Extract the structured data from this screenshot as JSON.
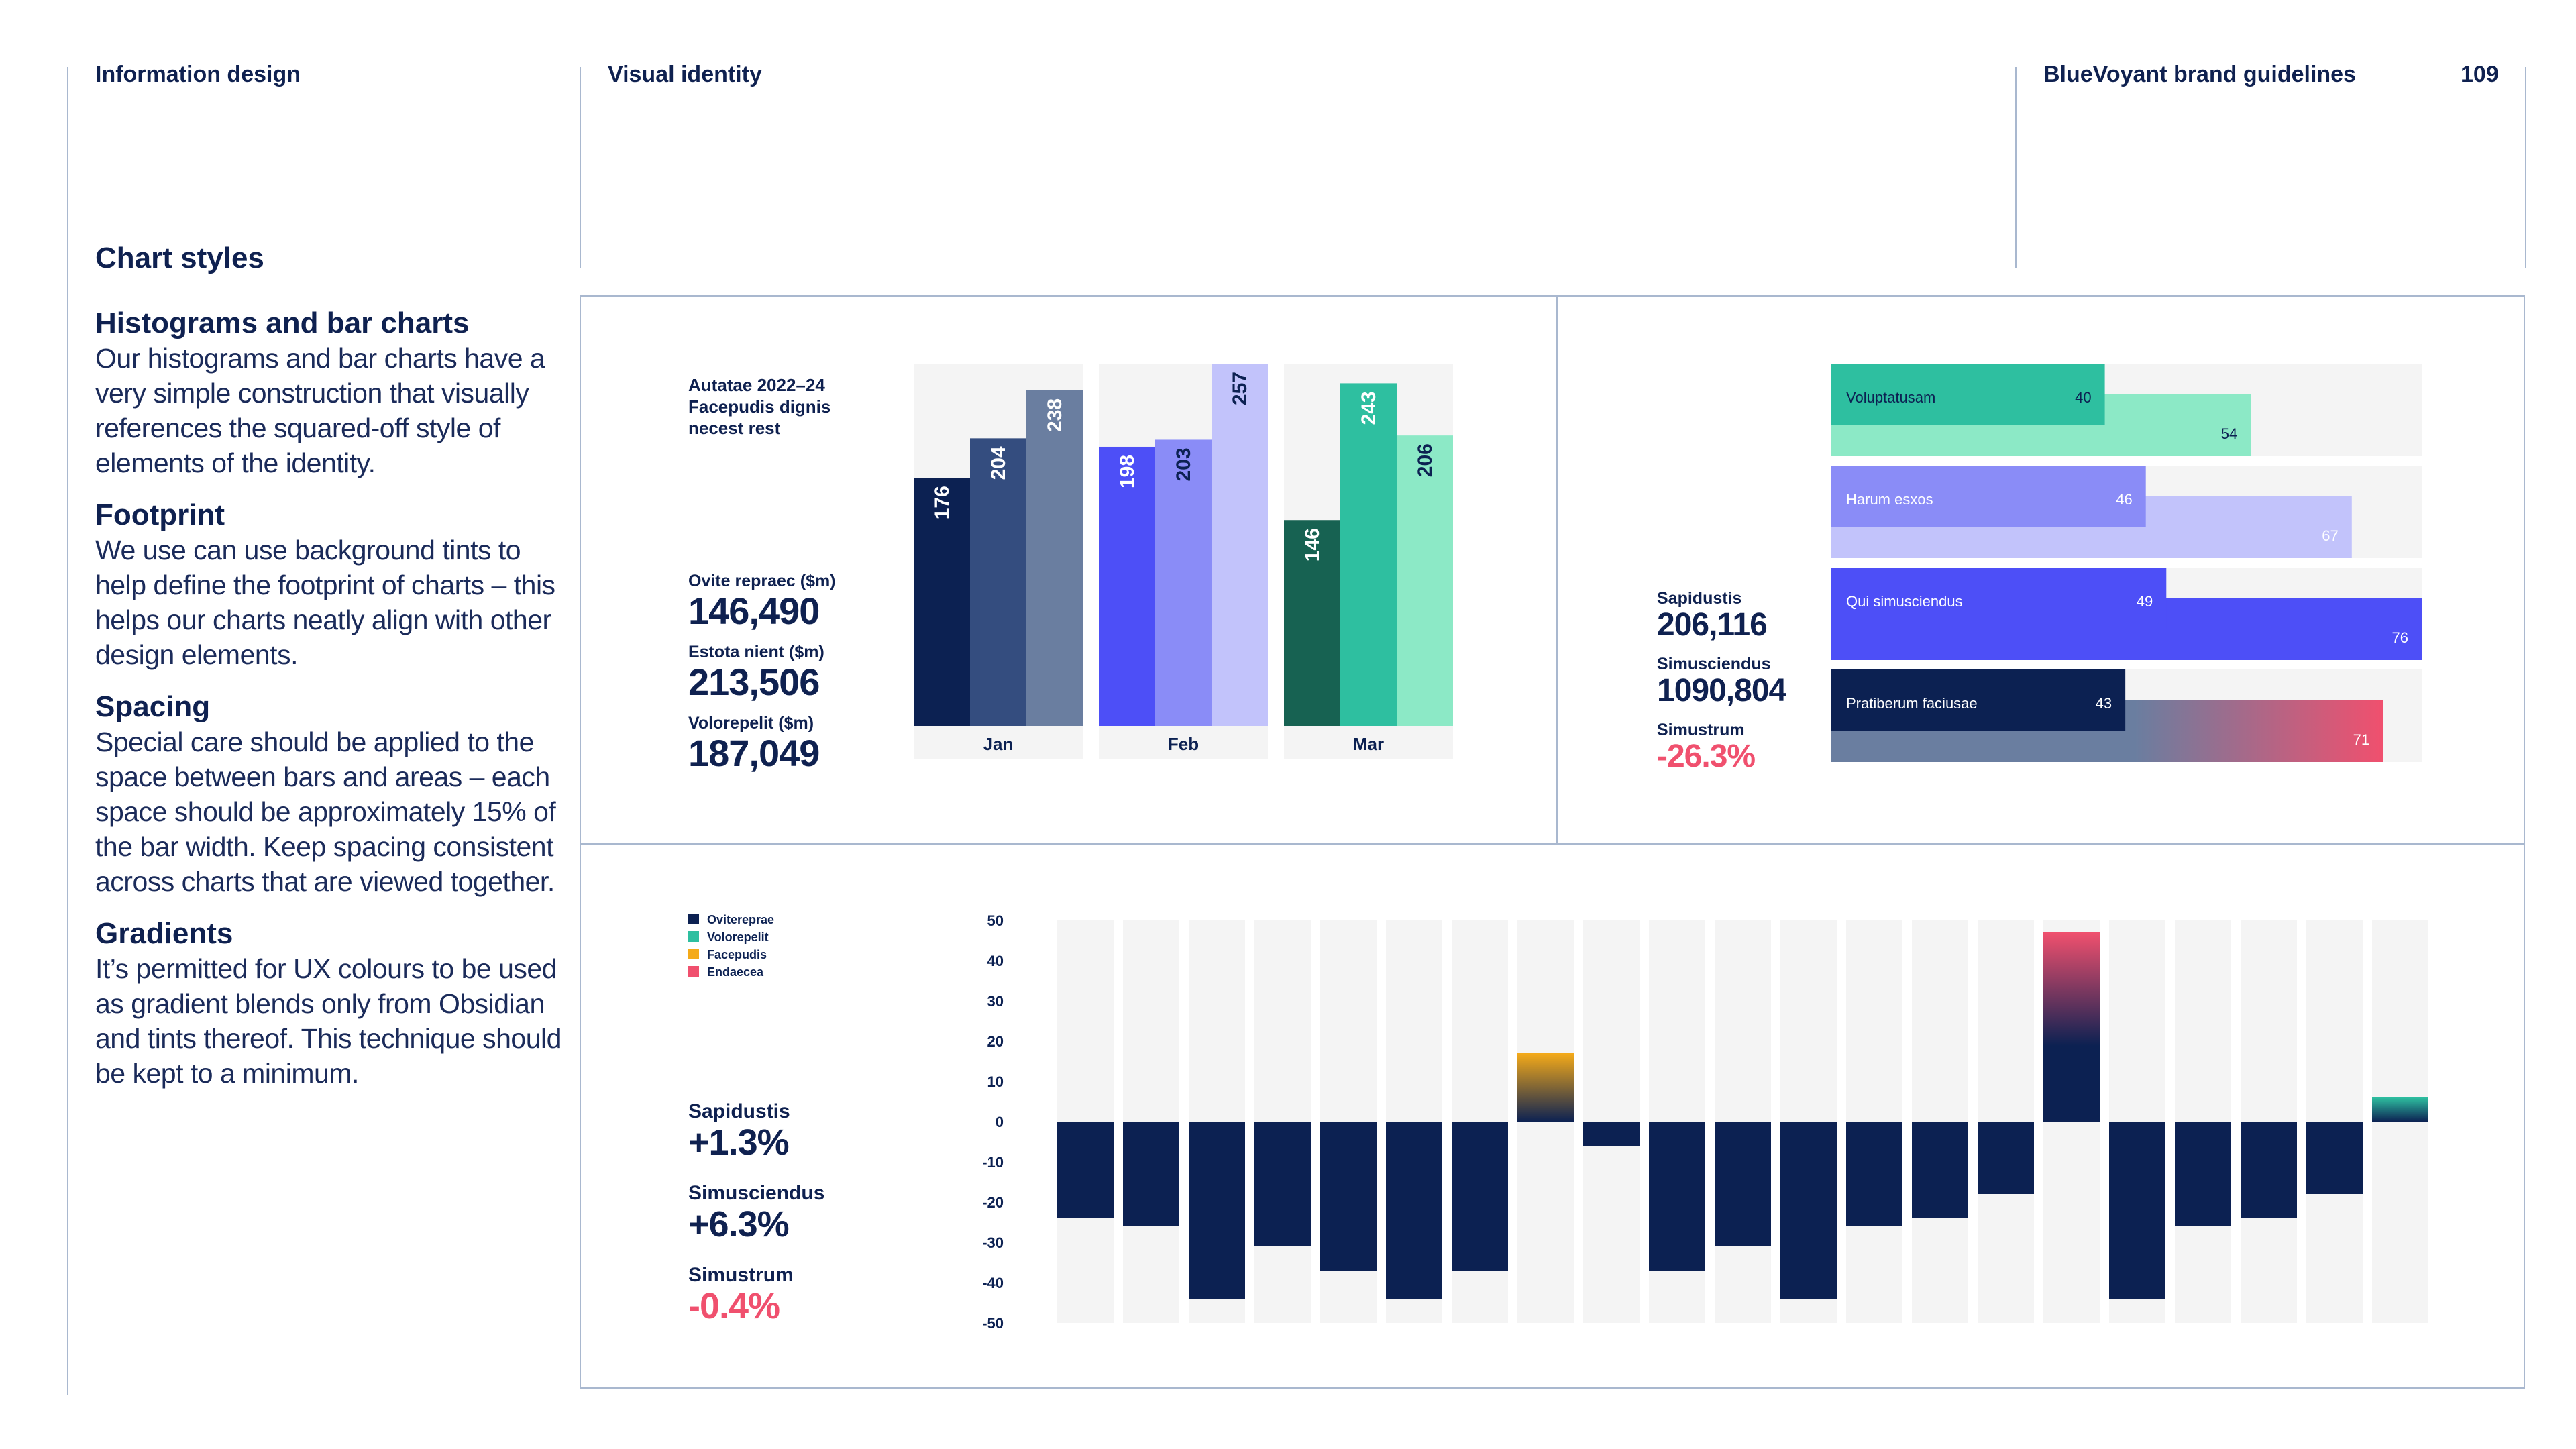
{
  "header": {
    "section": "Information design",
    "subsection": "Visual identity",
    "brand": "BlueVoyant brand guidelines",
    "page_number": "109"
  },
  "sidebar": {
    "title": "Chart styles",
    "blocks": [
      {
        "heading": "Histograms and bar charts",
        "body": "Our histograms and bar charts have a very simple construction that visually references the squared-off style of elements of the identity."
      },
      {
        "heading": "Footprint",
        "body": "We use can use background tints to help define the footprint of charts – this helps our charts neatly align with other design elements."
      },
      {
        "heading": "Spacing",
        "body": "Special care should be applied to the space between bars and areas – each space should be approximately 15% of the bar width. Keep spacing consistent across charts that are viewed together."
      },
      {
        "heading": "Gradients",
        "body": "It’s permitted for UX colours to be used as gradient blends only from Obsidian and tints thereof. This technique should be kept to a minimum."
      }
    ]
  },
  "panel1": {
    "title": "Autatae 2022–24 Facepudis dignis necest rest",
    "stats": [
      {
        "label": "Ovite repraec ($m)",
        "value": "146,490"
      },
      {
        "label": "Estota nient ($m)",
        "value": "213,506"
      },
      {
        "label": "Volorepelit ($m)",
        "value": "187,049"
      }
    ]
  },
  "panel2": {
    "stats": [
      {
        "label": "Sapidustis",
        "value": "206,116"
      },
      {
        "label": "Simusciendus",
        "value": "1090,804"
      },
      {
        "label": "Simustrum",
        "value": "-26.3%"
      }
    ]
  },
  "panel3": {
    "legend": [
      "Ovitereprae",
      "Volorepelit",
      "Facepudis",
      "Endaecea"
    ],
    "stats": [
      {
        "label": "Sapidustis",
        "value": "+1.3%"
      },
      {
        "label": "Simusciendus",
        "value": "+6.3%"
      },
      {
        "label": "Simustrum",
        "value": "-0.4%"
      }
    ]
  },
  "colors": {
    "obsidian": "#0c2152",
    "slate": "#344d7f",
    "slate_light": "#6a7ea0",
    "violet": "#4d4ff7",
    "violet_mid": "#8a8cf7",
    "violet_light": "#c2c3fb",
    "forest": "#176252",
    "teal": "#2ebfa0",
    "mint": "#8ce9c6",
    "amber": "#f4aa19",
    "coral": "#f0506e",
    "tint": "#f4f4f4",
    "rule": "#a9b8cf"
  },
  "chart_data": [
    {
      "type": "bar",
      "categories": [
        "Jan",
        "Feb",
        "Mar"
      ],
      "groups": [
        {
          "values": [
            176,
            204,
            238
          ]
        },
        {
          "values": [
            198,
            203,
            257
          ]
        },
        {
          "values": [
            146,
            243,
            206
          ]
        }
      ],
      "ylim": [
        0,
        257
      ]
    },
    {
      "type": "bar",
      "orientation": "horizontal",
      "rows": [
        {
          "label": "Voluptatusam",
          "primary": 40,
          "secondary": 54
        },
        {
          "label": "Harum esxos",
          "primary": 46,
          "secondary": 67
        },
        {
          "label": "Qui simusciendus",
          "primary": 49,
          "secondary": 76
        },
        {
          "label": "Pratiberum faciusae",
          "primary": 43,
          "secondary": 71
        }
      ],
      "xlim": [
        0,
        76
      ]
    },
    {
      "type": "bar",
      "yticks": [
        50,
        40,
        30,
        20,
        10,
        0,
        -10,
        -20,
        -30,
        -40,
        -50
      ],
      "ylim": [
        -50,
        50
      ],
      "values": [
        -24,
        -26,
        -44,
        -31,
        -37,
        -44,
        -37,
        17,
        -6,
        -37,
        -31,
        -44,
        -26,
        -24,
        -18,
        47,
        -44,
        -26,
        -24,
        -18,
        6
      ],
      "colors": [
        "obsidian",
        "obsidian",
        "obsidian",
        "obsidian",
        "obsidian",
        "obsidian",
        "obsidian",
        "amber",
        "obsidian",
        "obsidian",
        "obsidian",
        "obsidian",
        "obsidian",
        "obsidian",
        "obsidian",
        "coral",
        "obsidian",
        "obsidian",
        "obsidian",
        "obsidian",
        "teal"
      ]
    }
  ]
}
